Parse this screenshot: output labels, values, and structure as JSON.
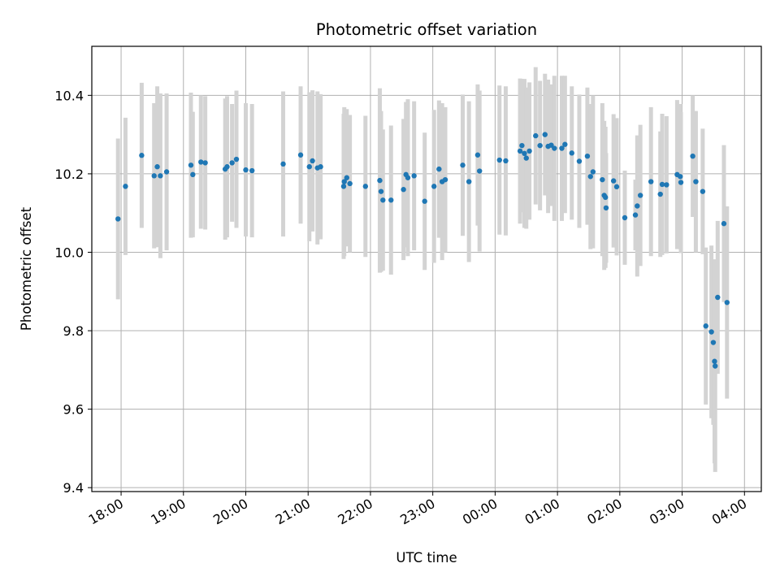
{
  "chart_data": {
    "type": "scatter",
    "title": "Photometric offset variation",
    "xlabel": "UTC time",
    "ylabel": "Photometric offset",
    "x_unit": "hours",
    "x_axis_format": "HH:MM",
    "xlim": [
      17.53,
      28.27
    ],
    "ylim": [
      9.39,
      10.525
    ],
    "x_ticks": [
      18,
      19,
      20,
      21,
      22,
      23,
      24,
      25,
      26,
      27,
      28
    ],
    "x_tick_labels": [
      "18:00",
      "19:00",
      "20:00",
      "21:00",
      "22:00",
      "23:00",
      "00:00",
      "01:00",
      "02:00",
      "03:00",
      "04:00"
    ],
    "y_ticks": [
      9.4,
      9.6,
      9.8,
      10.0,
      10.2,
      10.4
    ],
    "y_tick_labels": [
      "9.4",
      "9.6",
      "9.8",
      "10.0",
      "10.2",
      "10.4"
    ],
    "grid": true,
    "colors": {
      "point": "#1f77b4",
      "errorbar": "#d3d3d3",
      "grid": "#b0b0b0"
    },
    "series": [
      {
        "points": [
          [
            17.95,
            10.085,
            0.205
          ],
          [
            18.07,
            10.168,
            0.175
          ],
          [
            18.33,
            10.247,
            0.185
          ],
          [
            18.53,
            10.195,
            0.185
          ],
          [
            18.58,
            10.218,
            0.205
          ],
          [
            18.63,
            10.195,
            0.21
          ],
          [
            18.73,
            10.205,
            0.2
          ],
          [
            19.12,
            10.222,
            0.185
          ],
          [
            19.15,
            10.198,
            0.16
          ],
          [
            19.28,
            10.23,
            0.17
          ],
          [
            19.35,
            10.228,
            0.17
          ],
          [
            19.67,
            10.212,
            0.18
          ],
          [
            19.7,
            10.218,
            0.18
          ],
          [
            19.78,
            10.228,
            0.15
          ],
          [
            19.85,
            10.237,
            0.175
          ],
          [
            20.0,
            10.21,
            0.17
          ],
          [
            20.1,
            10.208,
            0.17
          ],
          [
            20.6,
            10.225,
            0.185
          ],
          [
            20.88,
            10.248,
            0.175
          ],
          [
            21.02,
            10.218,
            0.19
          ],
          [
            21.07,
            10.233,
            0.18
          ],
          [
            21.15,
            10.215,
            0.195
          ],
          [
            21.2,
            10.218,
            0.185
          ],
          [
            21.57,
            10.168,
            0.185
          ],
          [
            21.58,
            10.18,
            0.19
          ],
          [
            21.62,
            10.19,
            0.175
          ],
          [
            21.67,
            10.175,
            0.175
          ],
          [
            21.92,
            10.168,
            0.18
          ],
          [
            22.15,
            10.183,
            0.235
          ],
          [
            22.17,
            10.155,
            0.205
          ],
          [
            22.2,
            10.133,
            0.18
          ],
          [
            22.33,
            10.133,
            0.19
          ],
          [
            22.53,
            10.16,
            0.18
          ],
          [
            22.57,
            10.198,
            0.185
          ],
          [
            22.6,
            10.19,
            0.2
          ],
          [
            22.7,
            10.195,
            0.19
          ],
          [
            22.87,
            10.13,
            0.175
          ],
          [
            23.02,
            10.168,
            0.195
          ],
          [
            23.1,
            10.212,
            0.175
          ],
          [
            23.15,
            10.18,
            0.2
          ],
          [
            23.2,
            10.185,
            0.185
          ],
          [
            23.48,
            10.222,
            0.18
          ],
          [
            23.58,
            10.18,
            0.205
          ],
          [
            23.72,
            10.248,
            0.18
          ],
          [
            23.75,
            10.207,
            0.205
          ],
          [
            24.07,
            10.235,
            0.19
          ],
          [
            24.17,
            10.233,
            0.19
          ],
          [
            24.4,
            10.258,
            0.185
          ],
          [
            24.43,
            10.272,
            0.17
          ],
          [
            24.47,
            10.252,
            0.19
          ],
          [
            24.5,
            10.24,
            0.18
          ],
          [
            24.55,
            10.258,
            0.175
          ],
          [
            24.65,
            10.297,
            0.175
          ],
          [
            24.72,
            10.272,
            0.165
          ],
          [
            24.8,
            10.3,
            0.155
          ],
          [
            24.85,
            10.27,
            0.17
          ],
          [
            24.9,
            10.273,
            0.155
          ],
          [
            24.95,
            10.265,
            0.185
          ],
          [
            25.07,
            10.265,
            0.185
          ],
          [
            25.12,
            10.275,
            0.175
          ],
          [
            25.23,
            10.253,
            0.17
          ],
          [
            25.35,
            10.232,
            0.17
          ],
          [
            25.48,
            10.245,
            0.175
          ],
          [
            25.53,
            10.193,
            0.185
          ],
          [
            25.57,
            10.205,
            0.195
          ],
          [
            25.72,
            10.185,
            0.195
          ],
          [
            25.75,
            10.145,
            0.19
          ],
          [
            25.77,
            10.14,
            0.18
          ],
          [
            25.78,
            10.113,
            0.14
          ],
          [
            25.9,
            10.182,
            0.17
          ],
          [
            25.95,
            10.167,
            0.175
          ],
          [
            26.08,
            10.088,
            0.12
          ],
          [
            26.25,
            10.095,
            0.09
          ],
          [
            26.28,
            10.118,
            0.18
          ],
          [
            26.33,
            10.145,
            0.18
          ],
          [
            26.5,
            10.18,
            0.19
          ],
          [
            26.65,
            10.148,
            0.16
          ],
          [
            26.68,
            10.173,
            0.18
          ],
          [
            26.75,
            10.172,
            0.175
          ],
          [
            26.92,
            10.198,
            0.19
          ],
          [
            26.97,
            10.193,
            0.185
          ],
          [
            26.98,
            10.178,
            0.18
          ],
          [
            27.17,
            10.245,
            0.155
          ],
          [
            27.22,
            10.18,
            0.18
          ],
          [
            27.33,
            10.155,
            0.16
          ],
          [
            27.38,
            9.812,
            0.2
          ],
          [
            27.47,
            9.797,
            0.22
          ],
          [
            27.5,
            9.77,
            0.21
          ],
          [
            27.52,
            9.722,
            0.26
          ],
          [
            27.53,
            9.71,
            0.27
          ],
          [
            27.57,
            9.885,
            0.195
          ],
          [
            27.67,
            10.073,
            0.2
          ],
          [
            27.72,
            9.872,
            0.245
          ]
        ]
      }
    ]
  }
}
